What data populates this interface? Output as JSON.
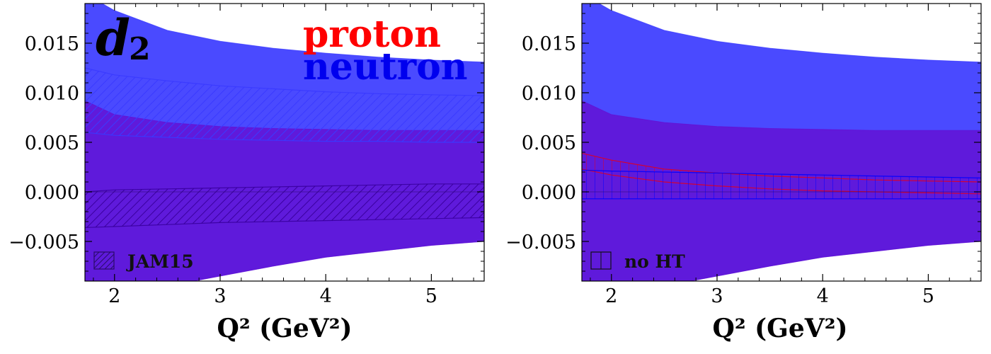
{
  "chart_data": [
    {
      "type": "area",
      "panel": "left",
      "title": "d2",
      "xlabel": "Q² (GeV²)",
      "ylabel": "",
      "xlim": [
        1.72,
        5.5
      ],
      "ylim": [
        -0.009,
        0.019
      ],
      "xticks": [
        2,
        3,
        4,
        5
      ],
      "yticks": [
        -0.005,
        0.0,
        0.005,
        0.01,
        0.015
      ],
      "ytick_labels": [
        "−0.005",
        "0.000",
        "0.005",
        "0.010",
        "0.015"
      ],
      "series_labels": [
        {
          "name": "proton",
          "color": "#ff0000"
        },
        {
          "name": "neutron",
          "color": "#0000ee"
        }
      ],
      "legend": {
        "label": "JAM15",
        "placement": "bottom-left",
        "hatch": "diagonal"
      },
      "x": [
        1.72,
        2.0,
        2.5,
        3.0,
        3.5,
        4.0,
        4.5,
        5.0,
        5.5
      ],
      "series": [
        {
          "name": "neutron",
          "color": "#2a2aff",
          "opacity": 0.85,
          "upper": [
            0.02,
            0.0183,
            0.0163,
            0.0152,
            0.0145,
            0.014,
            0.0136,
            0.0133,
            0.0131
          ],
          "lower": [
            -0.0125,
            -0.0115,
            -0.0095,
            -0.0085,
            -0.0075,
            -0.0066,
            -0.006,
            -0.0054,
            -0.005
          ]
        },
        {
          "name": "proton",
          "color": "#6a00c8",
          "opacity": 0.65,
          "upper": [
            0.0092,
            0.0078,
            0.007,
            0.0066,
            0.0064,
            0.0063,
            0.0062,
            0.0062,
            0.0062
          ],
          "lower": [
            -0.0125,
            -0.0115,
            -0.0095,
            -0.0085,
            -0.0075,
            -0.0066,
            -0.006,
            -0.0054,
            -0.005
          ]
        },
        {
          "name": "JAM15 neutron",
          "hatch": "diagonal",
          "color": "#3a3aff",
          "upper": [
            0.0125,
            0.0118,
            0.0112,
            0.0107,
            0.0104,
            0.0101,
            0.0099,
            0.0098,
            0.0097
          ],
          "lower": [
            0.006,
            0.0057,
            0.0055,
            0.0053,
            0.0052,
            0.0051,
            0.0051,
            0.005,
            0.005
          ]
        },
        {
          "name": "JAM15 proton",
          "hatch": "diagonal",
          "color": "#3a00a0",
          "upper": [
            0.0,
            0.0002,
            0.0003,
            0.0004,
            0.0005,
            0.0006,
            0.0007,
            0.0008,
            0.0008
          ],
          "lower": [
            -0.0036,
            -0.0035,
            -0.0033,
            -0.0031,
            -0.003,
            -0.0029,
            -0.0028,
            -0.0027,
            -0.0026
          ]
        }
      ]
    },
    {
      "type": "area",
      "panel": "right",
      "title": "",
      "xlabel": "Q² (GeV²)",
      "ylabel": "",
      "xlim": [
        1.72,
        5.5
      ],
      "ylim": [
        -0.009,
        0.019
      ],
      "xticks": [
        2,
        3,
        4,
        5
      ],
      "yticks": [
        -0.005,
        0.0,
        0.005,
        0.01,
        0.015
      ],
      "ytick_labels": [
        "−0.005",
        "0.000",
        "0.005",
        "0.010",
        "0.015"
      ],
      "legend": {
        "label": "no HT",
        "placement": "bottom-left",
        "hatch": "grid"
      },
      "x": [
        1.72,
        2.0,
        2.5,
        3.0,
        3.5,
        4.0,
        4.5,
        5.0,
        5.5
      ],
      "series": [
        {
          "name": "neutron",
          "color": "#2a2aff",
          "opacity": 0.85,
          "upper": [
            0.02,
            0.0183,
            0.0163,
            0.0152,
            0.0145,
            0.014,
            0.0136,
            0.0133,
            0.0131
          ],
          "lower": [
            -0.0125,
            -0.0115,
            -0.0095,
            -0.0085,
            -0.0075,
            -0.0066,
            -0.006,
            -0.0054,
            -0.005
          ]
        },
        {
          "name": "proton",
          "color": "#6a00c8",
          "opacity": 0.65,
          "upper": [
            0.0092,
            0.0078,
            0.007,
            0.0066,
            0.0064,
            0.0063,
            0.0062,
            0.0062,
            0.0062
          ],
          "lower": [
            -0.0125,
            -0.0115,
            -0.0095,
            -0.0085,
            -0.0075,
            -0.0066,
            -0.006,
            -0.0054,
            -0.005
          ]
        },
        {
          "name": "no HT proton",
          "hatch": "grid",
          "color": "#e00020",
          "upper": [
            0.0039,
            0.0032,
            0.0023,
            0.0019,
            0.0016,
            0.0014,
            0.0012,
            0.0011,
            0.001
          ],
          "lower": [
            0.0023,
            0.0017,
            0.001,
            0.0006,
            0.0003,
            0.0001,
            0.0,
            -0.0001,
            -0.0002
          ]
        },
        {
          "name": "no HT neutron",
          "hatch": "grid",
          "color": "#0000ff",
          "upper": [
            0.0022,
            0.0021,
            0.002,
            0.0019,
            0.0018,
            0.0017,
            0.0016,
            0.0015,
            0.0014
          ],
          "lower": [
            -0.0007,
            -0.0007,
            -0.0007,
            -0.0007,
            -0.0007,
            -0.0007,
            -0.0007,
            -0.0007,
            -0.0007
          ]
        }
      ]
    }
  ]
}
